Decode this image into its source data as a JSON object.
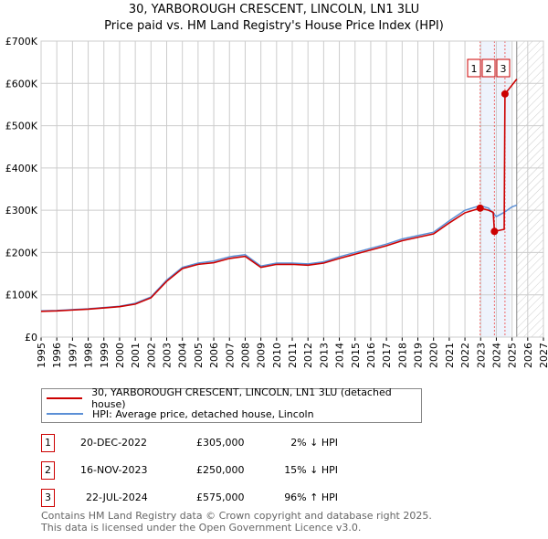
{
  "chart_data": {
    "type": "line",
    "title": "30, YARBOROUGH CRESCENT, LINCOLN, LN1 3LU",
    "subtitle": "Price paid vs. HM Land Registry's House Price Index (HPI)",
    "xlim": [
      1995,
      2027
    ],
    "ylim": [
      0,
      700000
    ],
    "x_ticks": [
      "1995",
      "1996",
      "1997",
      "1998",
      "1999",
      "2000",
      "2001",
      "2002",
      "2003",
      "2004",
      "2005",
      "2006",
      "2007",
      "2008",
      "2009",
      "2010",
      "2011",
      "2012",
      "2013",
      "2014",
      "2015",
      "2016",
      "2017",
      "2018",
      "2019",
      "2020",
      "2021",
      "2022",
      "2023",
      "2024",
      "2025",
      "2026",
      "2027"
    ],
    "y_ticks": [
      {
        "v": 0,
        "label": "£0"
      },
      {
        "v": 100000,
        "label": "£100K"
      },
      {
        "v": 200000,
        "label": "£200K"
      },
      {
        "v": 300000,
        "label": "£300K"
      },
      {
        "v": 400000,
        "label": "£400K"
      },
      {
        "v": 500000,
        "label": "£500K"
      },
      {
        "v": 600000,
        "label": "£600K"
      },
      {
        "v": 700000,
        "label": "£700K"
      }
    ],
    "grid": true,
    "shaded_range": [
      2022.97,
      2024.9
    ],
    "hatched_from": 2025.3,
    "series": [
      {
        "name": "30, YARBOROUGH CRESCENT, LINCOLN, LN1 3LU (detached house)",
        "color": "#cc0000",
        "x": [
          1995,
          1996,
          1997,
          1998,
          1999,
          2000,
          2001,
          2002,
          2003,
          2004,
          2005,
          2006,
          2007,
          2008,
          2009,
          2010,
          2011,
          2012,
          2013,
          2014,
          2015,
          2016,
          2017,
          2018,
          2019,
          2020,
          2021,
          2022,
          2022.97,
          2023.5,
          2023.8,
          2023.88,
          2024.5,
          2024.55,
          2025.3
        ],
        "y": [
          61000,
          62000,
          64000,
          66000,
          69000,
          72000,
          78000,
          93000,
          132000,
          162000,
          172000,
          176000,
          186000,
          191000,
          165000,
          172000,
          172000,
          170000,
          175000,
          186000,
          196000,
          206000,
          216000,
          228000,
          236000,
          244000,
          270000,
          294000,
          305000,
          300000,
          295000,
          250000,
          255000,
          575000,
          610000
        ]
      },
      {
        "name": "HPI: Average price, detached house, Lincoln",
        "color": "#5b8fd6",
        "x": [
          1995,
          1996,
          1997,
          1998,
          1999,
          2000,
          2001,
          2002,
          2003,
          2004,
          2005,
          2006,
          2007,
          2008,
          2009,
          2010,
          2011,
          2012,
          2013,
          2014,
          2015,
          2016,
          2017,
          2018,
          2019,
          2020,
          2021,
          2022,
          2022.97,
          2023.5,
          2024,
          2024.5,
          2025,
          2025.3
        ],
        "y": [
          62000,
          63000,
          65000,
          67000,
          70000,
          73000,
          80000,
          95000,
          135000,
          165000,
          175000,
          180000,
          190000,
          195000,
          168000,
          175000,
          175000,
          173000,
          178000,
          190000,
          200000,
          210000,
          220000,
          232000,
          240000,
          248000,
          275000,
          300000,
          311000,
          305000,
          285000,
          295000,
          308000,
          312000
        ]
      }
    ],
    "sales": [
      {
        "n": "1",
        "x": 2022.97,
        "y": 305000,
        "date": "20-DEC-2022",
        "price": "£305,000",
        "hpi": "2% ↓ HPI"
      },
      {
        "n": "2",
        "x": 2023.88,
        "y": 250000,
        "date": "16-NOV-2023",
        "price": "£250,000",
        "hpi": "15% ↓ HPI"
      },
      {
        "n": "3",
        "x": 2024.55,
        "y": 575000,
        "date": "22-JUL-2024",
        "price": "£575,000",
        "hpi": "96% ↑ HPI"
      }
    ]
  },
  "legend": {
    "property": "30, YARBOROUGH CRESCENT, LINCOLN, LN1 3LU (detached house)",
    "hpi": "HPI: Average price, detached house, Lincoln"
  },
  "footer": {
    "line1": "Contains HM Land Registry data © Crown copyright and database right 2025.",
    "line2": "This data is licensed under the Open Government Licence v3.0."
  }
}
